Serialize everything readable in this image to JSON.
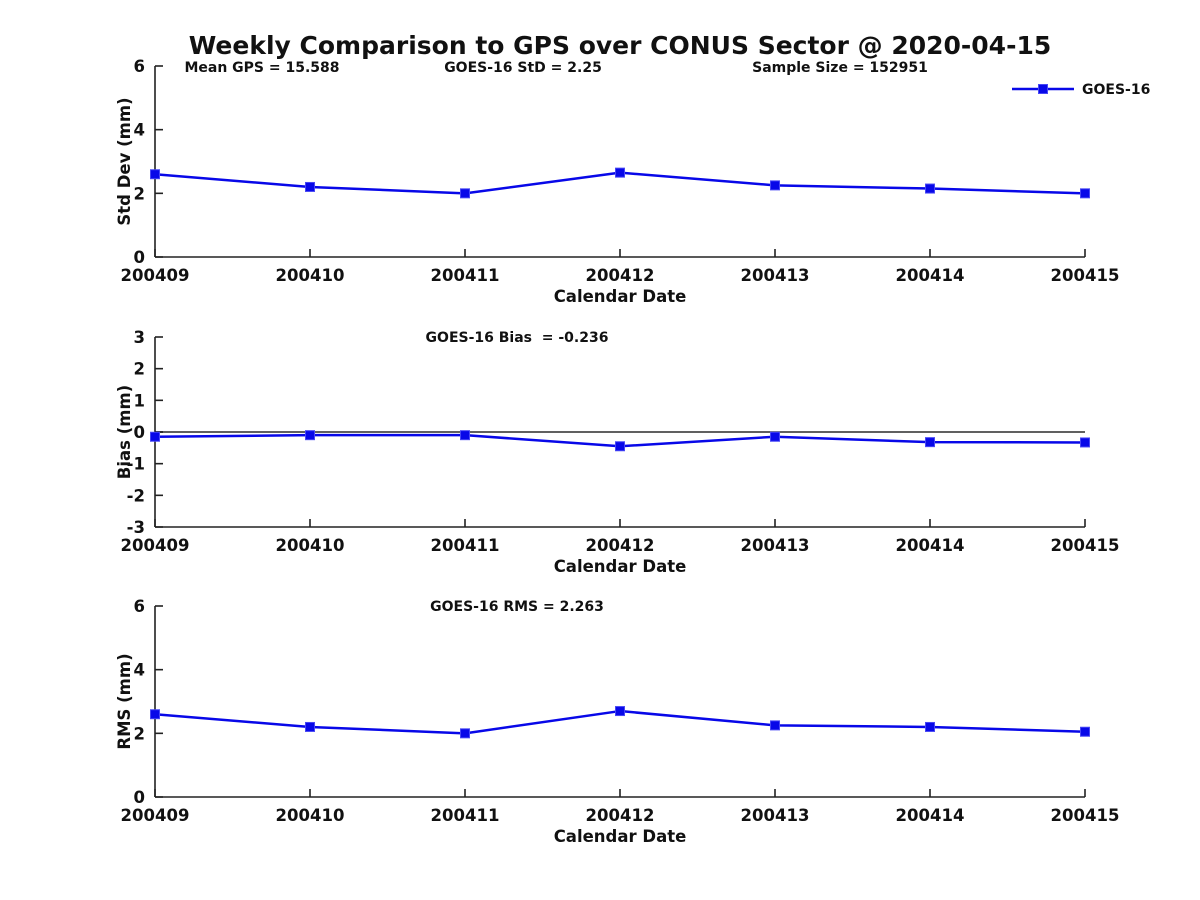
{
  "title": "Weekly Comparison to GPS over CONUS Sector @ 2020-04-15",
  "legend": {
    "label": "GOES-16",
    "position": "top-right"
  },
  "colors": {
    "series_line": "#0808e8",
    "marker_fill": "#0808e8",
    "marker_edge": "#4747f5",
    "axis": "#222222",
    "text": "#111111",
    "background": "#ffffff"
  },
  "chart_data": [
    {
      "type": "line",
      "name": "std-dev-panel",
      "categories": [
        "200409",
        "200410",
        "200411",
        "200412",
        "200413",
        "200414",
        "200415"
      ],
      "series": [
        {
          "name": "GOES-16",
          "values": [
            2.6,
            2.2,
            2.0,
            2.65,
            2.25,
            2.15,
            2.0
          ]
        }
      ],
      "ylabel": "Std Dev (mm)",
      "xlabel": "Calendar Date",
      "ylim": [
        0,
        6
      ],
      "yticks": [
        0,
        2,
        4,
        6
      ],
      "grid": false,
      "legend_position": "top-right",
      "annotations": [
        "Mean GPS = 15.588",
        "GOES-16 StD = 2.25",
        "Sample Size = 152951"
      ]
    },
    {
      "type": "line",
      "name": "bias-panel",
      "categories": [
        "200409",
        "200410",
        "200411",
        "200412",
        "200413",
        "200414",
        "200415"
      ],
      "series": [
        {
          "name": "GOES-16",
          "values": [
            -0.15,
            -0.1,
            -0.1,
            -0.45,
            -0.15,
            -0.32,
            -0.33
          ]
        }
      ],
      "ylabel": "Bias (mm)",
      "xlabel": "Calendar Date",
      "ylim": [
        -3,
        3
      ],
      "yticks": [
        -3,
        -2,
        -1,
        0,
        1,
        2,
        3
      ],
      "zero_line": true,
      "grid": false,
      "annotations": [
        "GOES-16 Bias  = -0.236"
      ]
    },
    {
      "type": "line",
      "name": "rms-panel",
      "categories": [
        "200409",
        "200410",
        "200411",
        "200412",
        "200413",
        "200414",
        "200415"
      ],
      "series": [
        {
          "name": "GOES-16",
          "values": [
            2.6,
            2.2,
            2.0,
            2.7,
            2.25,
            2.2,
            2.05
          ]
        }
      ],
      "ylabel": "RMS (mm)",
      "xlabel": "Calendar Date",
      "ylim": [
        0,
        6
      ],
      "yticks": [
        0,
        2,
        4,
        6
      ],
      "grid": false,
      "annotations": [
        "GOES-16 RMS = 2.263"
      ]
    }
  ]
}
